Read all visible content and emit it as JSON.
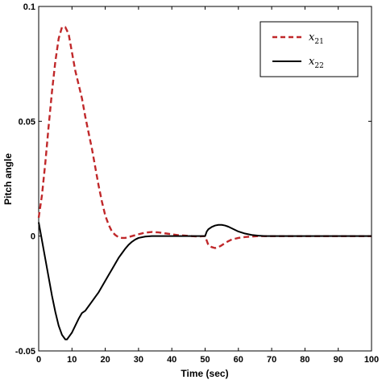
{
  "chart_data": {
    "type": "line",
    "xlabel": "Time (sec)",
    "ylabel": "Pitch angle",
    "xlim": [
      0,
      100
    ],
    "ylim": [
      -0.05,
      0.1
    ],
    "xticks": [
      "0",
      "10",
      "20",
      "30",
      "40",
      "50",
      "60",
      "70",
      "80",
      "90",
      "100"
    ],
    "yticks": [
      "-0.05",
      "0",
      "0.05",
      "0.1"
    ],
    "grid": false,
    "legend_position": "top-right",
    "series": [
      {
        "name": "x21",
        "legend_base": "x",
        "legend_sub": "21",
        "color": "#c0282a",
        "style": "dashed",
        "x": [
          0,
          1,
          2,
          3,
          4,
          5,
          6,
          7,
          8,
          9,
          10,
          11,
          12,
          13,
          14,
          15,
          16,
          17,
          18,
          19,
          20,
          21,
          22,
          23,
          24,
          25,
          26,
          28,
          30,
          32,
          34,
          36,
          38,
          40,
          42,
          44,
          46,
          48,
          49.5,
          50,
          50.5,
          51,
          52,
          53,
          54,
          55,
          56,
          57,
          58,
          60,
          62,
          64,
          66,
          68,
          70,
          75,
          80,
          90,
          100
        ],
        "y": [
          0.008,
          0.018,
          0.032,
          0.048,
          0.063,
          0.076,
          0.086,
          0.091,
          0.091,
          0.088,
          0.08,
          0.072,
          0.066,
          0.06,
          0.052,
          0.045,
          0.038,
          0.03,
          0.022,
          0.015,
          0.009,
          0.005,
          0.002,
          0.0005,
          -0.0005,
          -0.0008,
          -0.0008,
          0.0,
          0.0008,
          0.0015,
          0.0018,
          0.0016,
          0.0012,
          0.0008,
          0.0004,
          0.0002,
          0.0,
          -0.0002,
          0.0,
          0.0,
          -0.002,
          -0.004,
          -0.0048,
          -0.0052,
          -0.0048,
          -0.004,
          -0.003,
          -0.0022,
          -0.0015,
          -0.0008,
          -0.0004,
          -0.0002,
          0.0,
          0.0,
          0.0,
          0.0,
          0.0,
          0.0,
          0.0
        ]
      },
      {
        "name": "x22",
        "legend_base": "x",
        "legend_sub": "22",
        "color": "#000000",
        "style": "solid",
        "x": [
          0,
          1,
          2,
          3,
          4,
          5,
          6,
          7,
          8,
          8.5,
          9,
          10,
          11,
          12,
          13,
          14,
          15,
          16,
          17,
          18,
          19,
          20,
          21,
          22,
          23,
          24,
          25,
          26,
          27,
          28,
          29,
          30,
          32,
          34,
          36,
          40,
          44,
          48,
          49.5,
          50,
          50.5,
          51,
          52,
          53,
          54,
          55,
          56,
          57,
          58,
          59,
          60,
          62,
          64,
          66,
          68,
          70,
          75,
          80,
          90,
          100
        ],
        "y": [
          0.006,
          -0.002,
          -0.01,
          -0.018,
          -0.026,
          -0.033,
          -0.039,
          -0.043,
          -0.045,
          -0.045,
          -0.044,
          -0.042,
          -0.039,
          -0.036,
          -0.0335,
          -0.0325,
          -0.0305,
          -0.0285,
          -0.0265,
          -0.0245,
          -0.022,
          -0.0195,
          -0.017,
          -0.0145,
          -0.012,
          -0.0095,
          -0.0075,
          -0.0055,
          -0.0038,
          -0.0025,
          -0.0015,
          -0.0008,
          -0.0002,
          0.0,
          0.0,
          0.0,
          0.0,
          0.0,
          0.0,
          0.0,
          0.002,
          0.003,
          0.004,
          0.0046,
          0.0049,
          0.0049,
          0.0046,
          0.0041,
          0.0034,
          0.0027,
          0.002,
          0.0011,
          0.0005,
          0.0002,
          0.0,
          0.0,
          0.0,
          0.0,
          0.0,
          0.0
        ]
      }
    ]
  }
}
